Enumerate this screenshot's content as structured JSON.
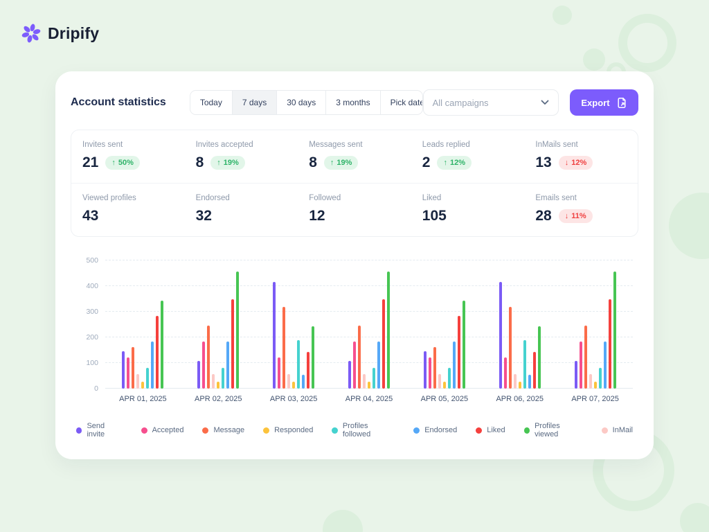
{
  "brand": {
    "name": "Dripify",
    "accent": "#7c5cfc"
  },
  "header": {
    "title": "Account statistics",
    "range_tabs": [
      {
        "label": "Today",
        "active": false
      },
      {
        "label": "7 days",
        "active": true
      },
      {
        "label": "30 days",
        "active": false
      },
      {
        "label": "3 months",
        "active": false
      },
      {
        "label": "Pick dates",
        "active": false
      }
    ],
    "campaign_select": {
      "value": "All campaigns"
    },
    "export_label": "Export"
  },
  "icons": {
    "arrow_up": "↑",
    "arrow_down": "↓"
  },
  "status_colors": {
    "up_text": "#2eb368",
    "up_bg": "#e2f6e9",
    "down_text": "#ef4040",
    "down_bg": "#fde5e5"
  },
  "stats": {
    "rows": [
      [
        {
          "label": "Invites sent",
          "value": "21",
          "delta": "50%",
          "direction": "up"
        },
        {
          "label": "Invites accepted",
          "value": "8",
          "delta": "19%",
          "direction": "up"
        },
        {
          "label": "Messages sent",
          "value": "8",
          "delta": "19%",
          "direction": "up"
        },
        {
          "label": "Leads replied",
          "value": "2",
          "delta": "12%",
          "direction": "up"
        },
        {
          "label": "InMails sent",
          "value": "13",
          "delta": "12%",
          "direction": "down"
        }
      ],
      [
        {
          "label": "Viewed profiles",
          "value": "43"
        },
        {
          "label": "Endorsed",
          "value": "32"
        },
        {
          "label": "Followed",
          "value": "12"
        },
        {
          "label": "Liked",
          "value": "105"
        },
        {
          "label": "Emails sent",
          "value": "28",
          "delta": "11%",
          "direction": "down"
        }
      ]
    ]
  },
  "chart_data": {
    "type": "bar",
    "categories": [
      "APR 01, 2025",
      "APR 02, 2025",
      "APR 03, 2025",
      "APR 04, 2025",
      "APR 05, 2025",
      "APR 06, 2025",
      "APR 07, 2025"
    ],
    "series": [
      {
        "name": "Send invite",
        "color": "#7b5bf5",
        "values": [
          145,
          107,
          415,
          107,
          145,
          415,
          107
        ]
      },
      {
        "name": "Accepted",
        "color": "#f64f8e",
        "values": [
          122,
          185,
          122,
          185,
          122,
          122,
          185
        ]
      },
      {
        "name": "Message",
        "color": "#fb6c49",
        "values": [
          162,
          245,
          318,
          245,
          162,
          318,
          245
        ]
      },
      {
        "name": "InMail",
        "color": "#fcc9c5",
        "values": [
          58,
          58,
          58,
          58,
          58,
          58,
          58
        ]
      },
      {
        "name": "Responded",
        "color": "#fcc33c",
        "values": [
          26,
          26,
          26,
          26,
          26,
          26,
          26
        ]
      },
      {
        "name": "Profiles followed",
        "color": "#45d2cf",
        "values": [
          80,
          80,
          190,
          80,
          80,
          190,
          80
        ]
      },
      {
        "name": "Endorsed",
        "color": "#55a8f7",
        "values": [
          183,
          183,
          55,
          183,
          183,
          55,
          183
        ]
      },
      {
        "name": "Liked",
        "color": "#f5403d",
        "values": [
          283,
          348,
          143,
          348,
          283,
          143,
          348
        ]
      },
      {
        "name": "Profiles viewed",
        "color": "#47c553",
        "values": [
          343,
          458,
          243,
          458,
          343,
          243,
          458
        ]
      }
    ],
    "legend_order": [
      "Send invite",
      "Accepted",
      "Message",
      "Responded",
      "Profiles followed",
      "Endorsed",
      "Liked",
      "Profiles viewed",
      "InMail"
    ],
    "title": "",
    "xlabel": "",
    "ylabel": "",
    "ylim": [
      0,
      500
    ],
    "yticks": [
      0,
      100,
      200,
      300,
      400,
      500
    ],
    "grid": true,
    "legend_position": "bottom"
  }
}
